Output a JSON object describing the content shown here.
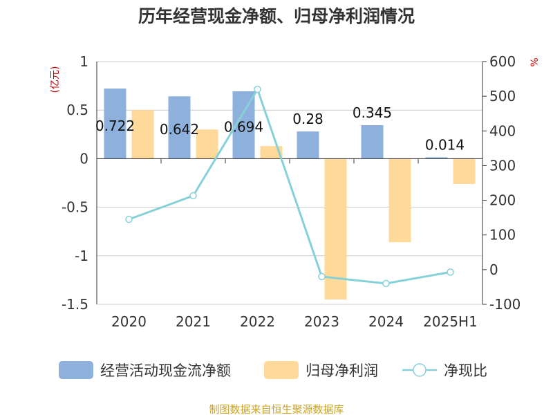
{
  "title": "历年经营现金净额、归母净利润情况",
  "source": "制图数据来自恒生聚源数据库",
  "chart_data": {
    "type": "bar",
    "categories": [
      "2020",
      "2021",
      "2022",
      "2023",
      "2024",
      "2025H1"
    ],
    "series": [
      {
        "name": "经营活动现金流净额",
        "type": "bar",
        "axis": "left",
        "color": "#8eb0dc",
        "values": [
          0.722,
          0.642,
          0.694,
          0.28,
          0.345,
          0.014
        ],
        "labels": [
          "0.722",
          "0.642",
          "0.694",
          "0.28",
          "0.345",
          "0.014"
        ]
      },
      {
        "name": "归母净利润",
        "type": "bar",
        "axis": "left",
        "color": "#ffd99a",
        "values": [
          0.5,
          0.3,
          0.13,
          -1.45,
          -0.86,
          -0.26
        ]
      },
      {
        "name": "净现比",
        "type": "line",
        "axis": "right",
        "color": "#86d0d8",
        "values": [
          145,
          213,
          520,
          -20,
          -40,
          -7
        ]
      }
    ],
    "y_left": {
      "unit": "(亿元)",
      "min": -1.5,
      "max": 1,
      "ticks": [
        1,
        0.5,
        0,
        -0.5,
        -1,
        -1.5
      ],
      "tick_labels": [
        "1",
        "0.5",
        "0",
        "-0.5",
        "-1",
        "-1.5"
      ]
    },
    "y_right": {
      "unit": "%",
      "min": -100,
      "max": 600,
      "ticks": [
        600,
        500,
        400,
        300,
        200,
        100,
        0,
        -100
      ],
      "tick_labels": [
        "600",
        "500",
        "400",
        "300",
        "200",
        "100",
        "0",
        "-100"
      ]
    },
    "grid": true,
    "legend_position": "bottom"
  }
}
